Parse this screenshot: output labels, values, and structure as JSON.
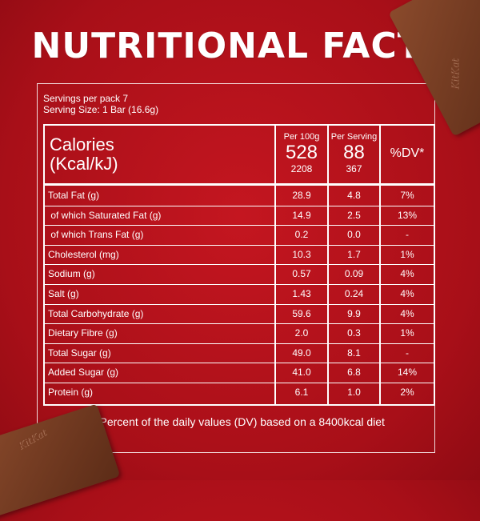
{
  "title": "NUTRITIONAL FACTS",
  "servings_per_pack": "Servings per pack 7",
  "serving_size": "Serving Size: 1 Bar (16.6g)",
  "header": {
    "calories_label_1": "Calories",
    "calories_label_2": "(Kcal/kJ)",
    "per100g_label": "Per 100g",
    "per100g_kcal": "528",
    "per100g_kj": "2208",
    "perserving_label": "Per Serving",
    "perserving_kcal": "88",
    "perserving_kj": "367",
    "dv_label": "%DV*"
  },
  "rows": [
    {
      "name": "Total Fat (g)",
      "per100g": "28.9",
      "perserving": "4.8",
      "dv": "7%"
    },
    {
      "name": " of which Saturated Fat (g)",
      "per100g": "14.9",
      "perserving": "2.5",
      "dv": "13%"
    },
    {
      "name": " of which Trans Fat (g)",
      "per100g": "0.2",
      "perserving": "0.0",
      "dv": "-"
    },
    {
      "name": "Cholesterol (mg)",
      "per100g": "10.3",
      "perserving": "1.7",
      "dv": "1%"
    },
    {
      "name": "Sodium (g)",
      "per100g": "0.57",
      "perserving": "0.09",
      "dv": "4%"
    },
    {
      "name": "Salt (g)",
      "per100g": "1.43",
      "perserving": "0.24",
      "dv": "4%"
    },
    {
      "name": "Total Carbohydrate (g)",
      "per100g": "59.6",
      "perserving": "9.9",
      "dv": "4%"
    },
    {
      "name": "Dietary Fibre (g)",
      "per100g": "2.0",
      "perserving": "0.3",
      "dv": "1%"
    },
    {
      "name": "Total Sugar (g)",
      "per100g": "49.0",
      "perserving": "8.1",
      "dv": "-"
    },
    {
      "name": "Added Sugar (g)",
      "per100g": "41.0",
      "perserving": "6.8",
      "dv": "14%"
    },
    {
      "name": "Protein (g)",
      "per100g": "6.1",
      "perserving": "1.0",
      "dv": "2%"
    }
  ],
  "footnote": "*Percent of the daily values (DV) based on a 8400kcal diet",
  "brand_mark": "KitKat",
  "colors": {
    "background": "#b3121b",
    "text": "#ffffff"
  }
}
